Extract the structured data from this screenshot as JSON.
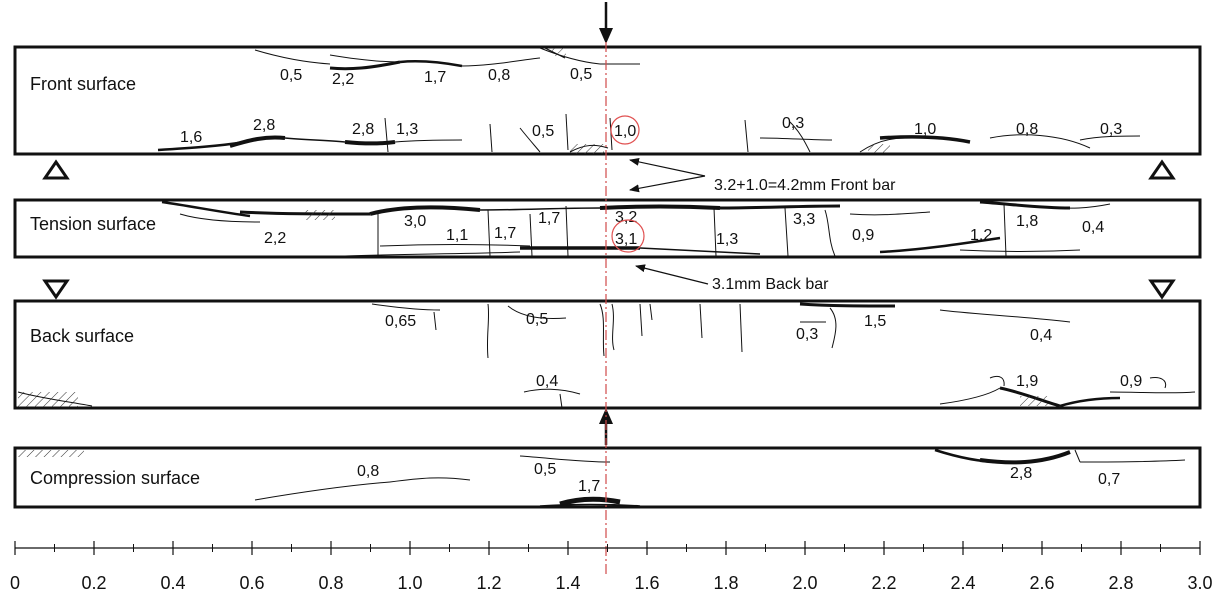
{
  "panels": [
    {
      "id": "front",
      "label": "Front surface"
    },
    {
      "id": "tension",
      "label": "Tension surface"
    },
    {
      "id": "back",
      "label": "Back surface"
    },
    {
      "id": "compression",
      "label": "Compression surface"
    }
  ],
  "crack_widths": {
    "front": [
      "0,5",
      "2,2",
      "1,7",
      "0,8",
      "0,5",
      "1,6",
      "2,8",
      "2,8",
      "1,3",
      "0,5",
      "1,0",
      "0,3",
      "1,0",
      "0,8",
      "0,3"
    ],
    "tension": [
      "2,2",
      "3,0",
      "1,1",
      "1,7",
      "1,7",
      "3,2",
      "3,1",
      "1,3",
      "3,3",
      "0,9",
      "1,8",
      "0,4",
      "1,2"
    ],
    "back": [
      "0,65",
      "0,5",
      "0,3",
      "1,5",
      "0,4",
      "0,4",
      "1,9",
      "0,9"
    ],
    "compression": [
      "0,8",
      "0,5",
      "1,7",
      "2,8",
      "0,7"
    ]
  },
  "annotations": {
    "front_bar": "3.2+1.0=4.2mm Front bar",
    "back_bar": "3.1mm Back bar"
  },
  "scale": {
    "ticks": [
      "0",
      "0.2",
      "0.4",
      "0.6",
      "0.8",
      "1.0",
      "1.2",
      "1.4",
      "1.6",
      "1.8",
      "2.0",
      "2.2",
      "2.4",
      "2.6",
      "2.8",
      "3.0"
    ]
  },
  "colors": {
    "ink": "#111111",
    "centerline": "#d04a4a",
    "highlight": "#e05050"
  }
}
